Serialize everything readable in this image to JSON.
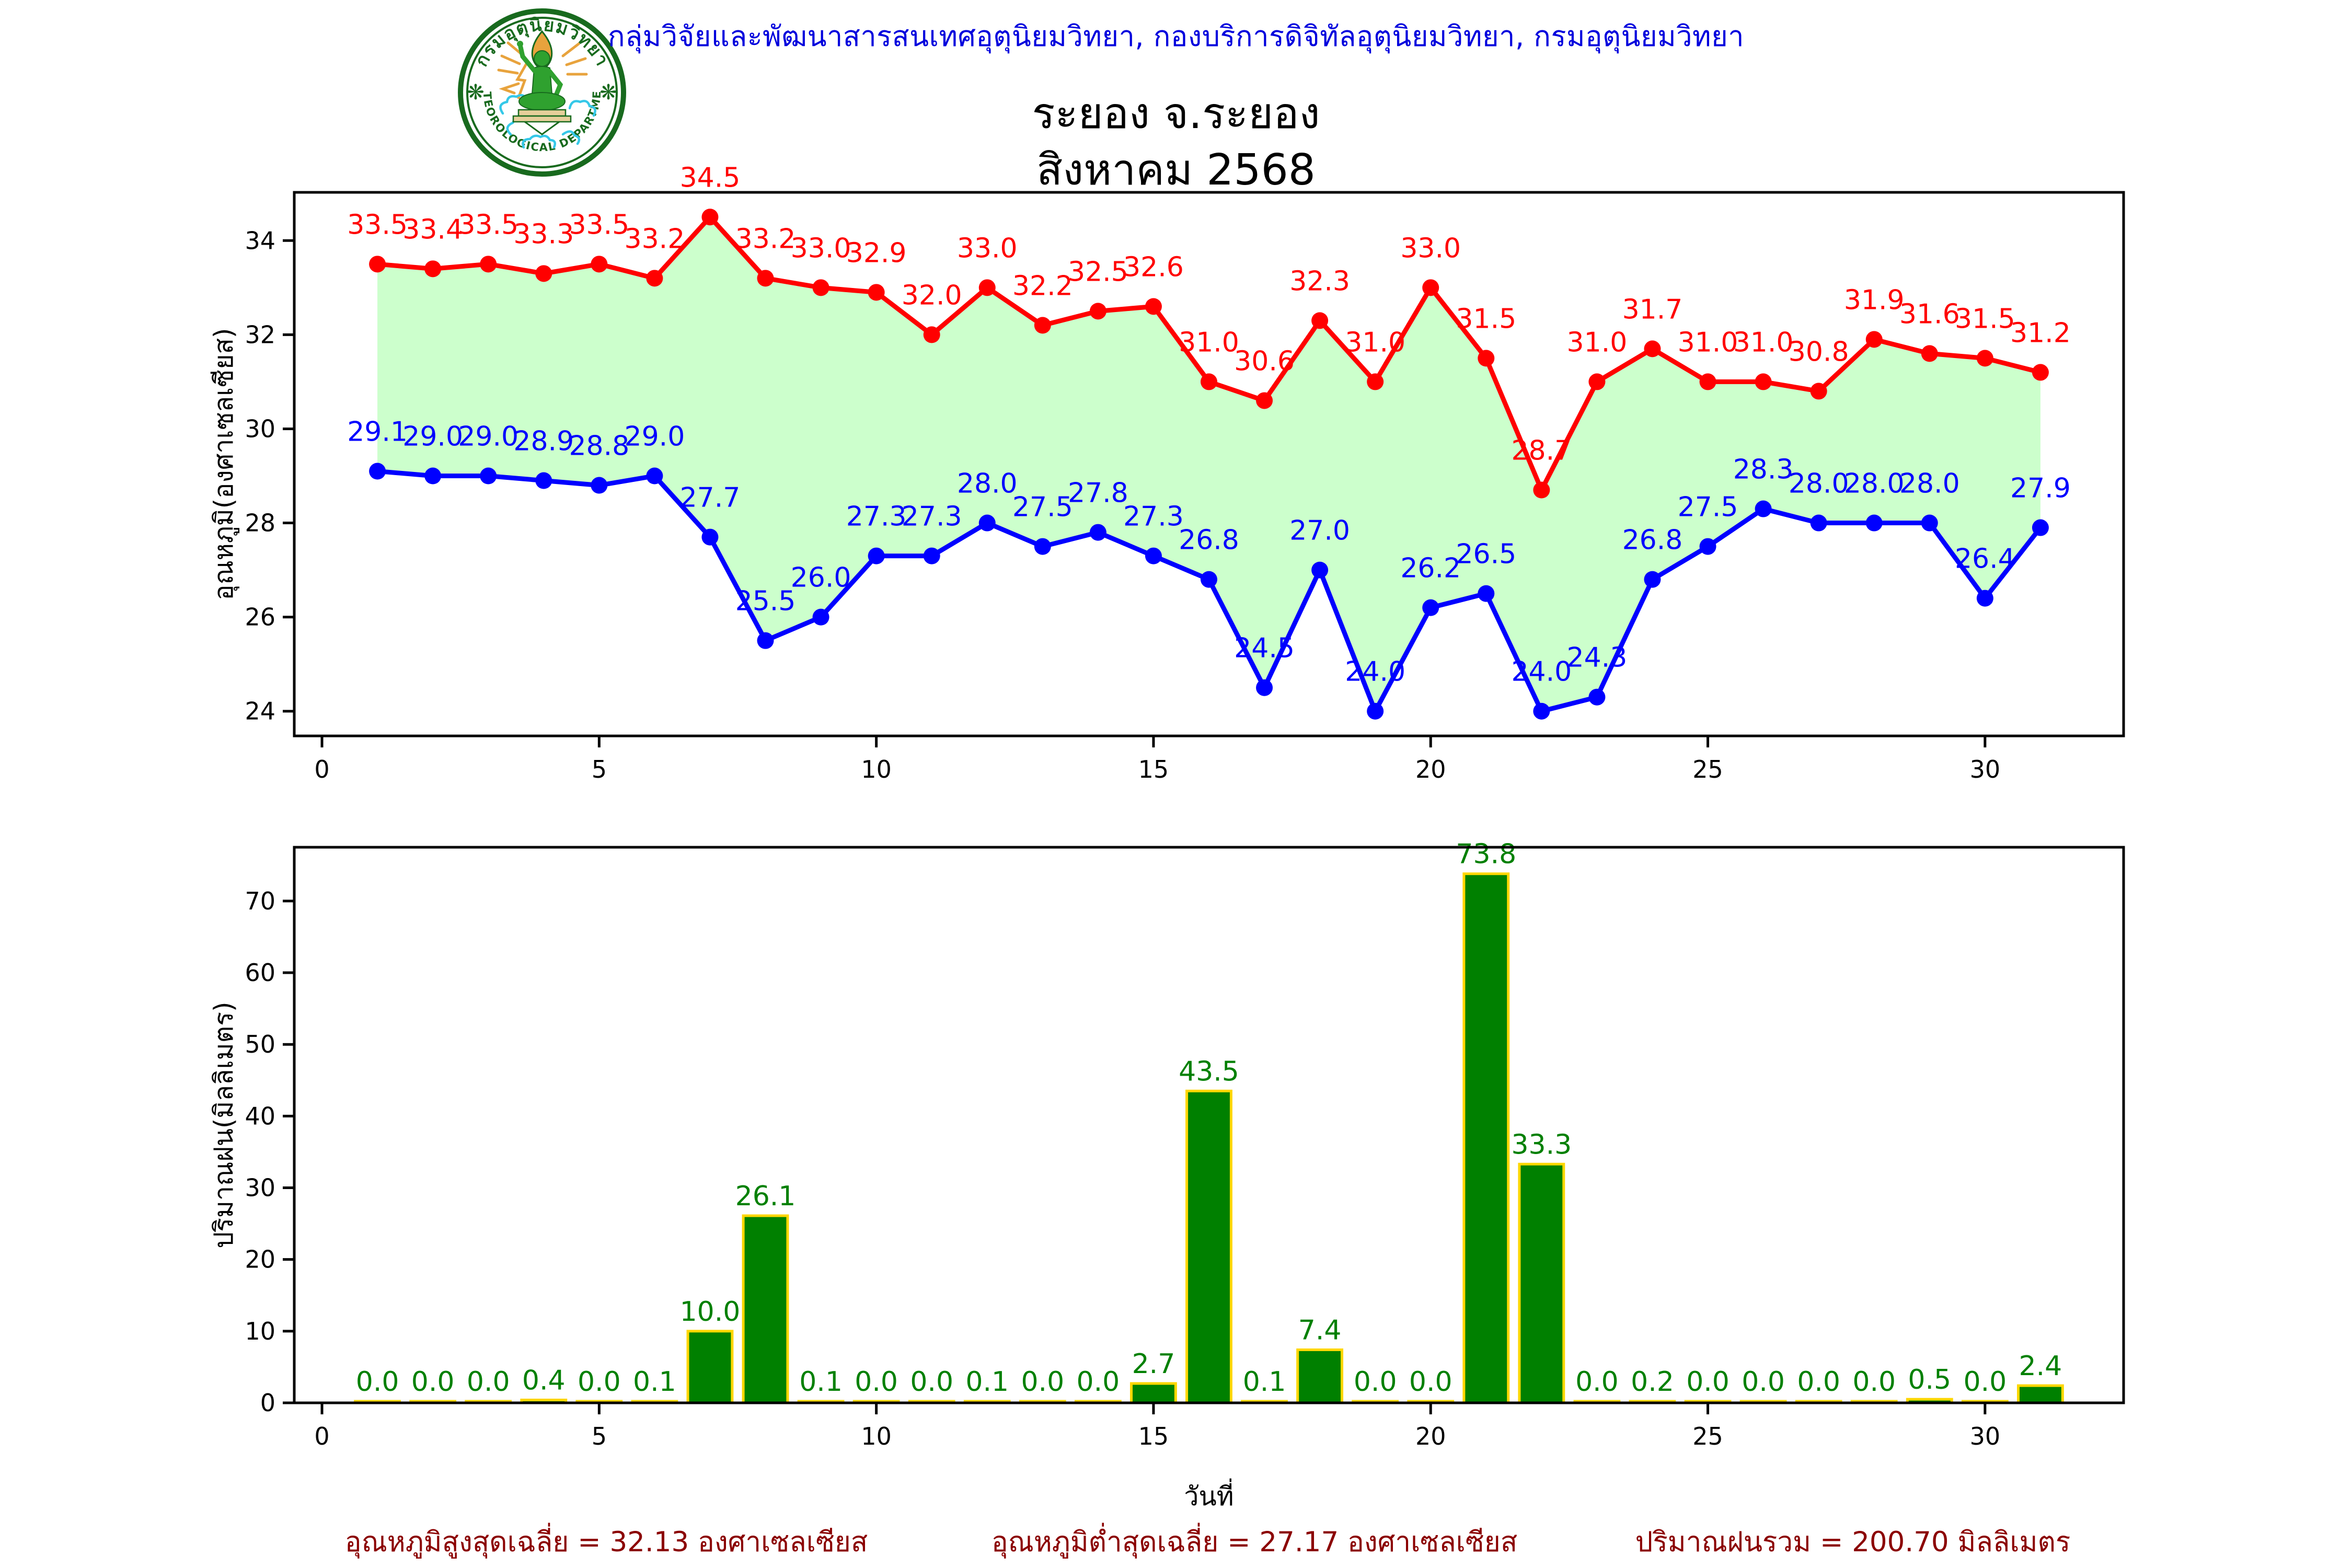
{
  "header": {
    "agency_line": "กลุ่มวิจัยและพัฒนาสารสนเทศอุตุนิยมวิทยา, กองบริการดิจิทัลอุตุนิยมวิทยา, กรมอุตุนิยมวิทยา",
    "station_title": "ระยอง จ.ระยอง",
    "month_title": "สิงหาคม 2568",
    "logo": {
      "ring_text_top": "กรมอุตุนิยมวิทยา",
      "ring_text_bottom": "METEOROLOGICAL DEPARTMENT"
    }
  },
  "chart_data": [
    {
      "type": "line",
      "name": "daily-temperature",
      "title": "",
      "xlabel": "",
      "ylabel": "อุณหภูมิ(องศาเซลเซียส)",
      "x": [
        1,
        2,
        3,
        4,
        5,
        6,
        7,
        8,
        9,
        10,
        11,
        12,
        13,
        14,
        15,
        16,
        17,
        18,
        19,
        20,
        21,
        22,
        23,
        24,
        25,
        26,
        27,
        28,
        29,
        30,
        31
      ],
      "series": [
        {
          "name": "max-temperature",
          "color": "#ff0000",
          "values": [
            33.5,
            33.4,
            33.5,
            33.3,
            33.5,
            33.2,
            34.5,
            33.2,
            33.0,
            32.9,
            32.0,
            33.0,
            32.2,
            32.5,
            32.6,
            31.0,
            30.6,
            32.3,
            31.0,
            33.0,
            31.5,
            28.7,
            31.0,
            31.7,
            31.0,
            31.0,
            30.8,
            31.9,
            31.6,
            31.5,
            31.2
          ]
        },
        {
          "name": "min-temperature",
          "color": "#0000ff",
          "values": [
            29.1,
            29.0,
            29.0,
            28.9,
            28.8,
            29.0,
            27.7,
            25.5,
            26.0,
            27.3,
            27.3,
            28.0,
            27.5,
            27.8,
            27.3,
            26.8,
            24.5,
            27.0,
            24.0,
            26.2,
            26.5,
            24.0,
            24.3,
            26.8,
            27.5,
            28.3,
            28.0,
            28.0,
            28.0,
            26.4,
            27.9
          ]
        }
      ],
      "fill_between_color": "#ccffcc",
      "xticks": [
        0,
        5,
        10,
        15,
        20,
        25,
        30
      ],
      "yticks": [
        24,
        26,
        28,
        30,
        32,
        34
      ],
      "xlim": [
        -0.5,
        32.5
      ],
      "ylim": [
        23.475,
        35.025
      ],
      "grid": false,
      "legend": "none"
    },
    {
      "type": "bar",
      "name": "daily-rainfall",
      "title": "",
      "xlabel": "วันที่",
      "ylabel": "ปริมาณฝน(มิลลิเมตร)",
      "x": [
        1,
        2,
        3,
        4,
        5,
        6,
        7,
        8,
        9,
        10,
        11,
        12,
        13,
        14,
        15,
        16,
        17,
        18,
        19,
        20,
        21,
        22,
        23,
        24,
        25,
        26,
        27,
        28,
        29,
        30,
        31
      ],
      "values": [
        0.0,
        0.0,
        0.0,
        0.4,
        0.0,
        0.1,
        10.0,
        26.1,
        0.1,
        0.0,
        0.0,
        0.1,
        0.0,
        0.0,
        2.7,
        43.5,
        0.1,
        7.4,
        0.0,
        0.0,
        73.8,
        33.3,
        0.0,
        0.2,
        0.0,
        0.0,
        0.0,
        0.0,
        0.5,
        0.0,
        2.4
      ],
      "bar_color": "#008000",
      "bar_edge_color": "#ffd700",
      "value_label_color": "#008000",
      "xticks": [
        0,
        5,
        10,
        15,
        20,
        25,
        30
      ],
      "yticks": [
        0,
        10,
        20,
        30,
        40,
        50,
        60,
        70
      ],
      "xlim": [
        -0.5,
        32.5
      ],
      "ylim": [
        0,
        77.5
      ],
      "grid": false
    }
  ],
  "footer": {
    "max_avg": "อุณหภูมิสูงสุดเฉลี่ย = 32.13 องศาเซลเซียส",
    "min_avg": "อุณหภูมิต่ำสุดเฉลี่ย = 27.17 องศาเซลเซียส",
    "rain_total": "ปริมาณฝนรวม = 200.70 มิลลิเมตร"
  },
  "colors": {
    "header_text": "#0000dd",
    "title_text": "#000000",
    "footer_text": "#8b0000",
    "max_line": "#ff0000",
    "min_line": "#0000ff",
    "band_fill": "#ccffcc",
    "bar_fill": "#008000",
    "bar_edge": "#ffd700",
    "logo_green": "#186a1e",
    "logo_gold": "#e8a33d",
    "logo_cyan": "#35c8e8"
  }
}
